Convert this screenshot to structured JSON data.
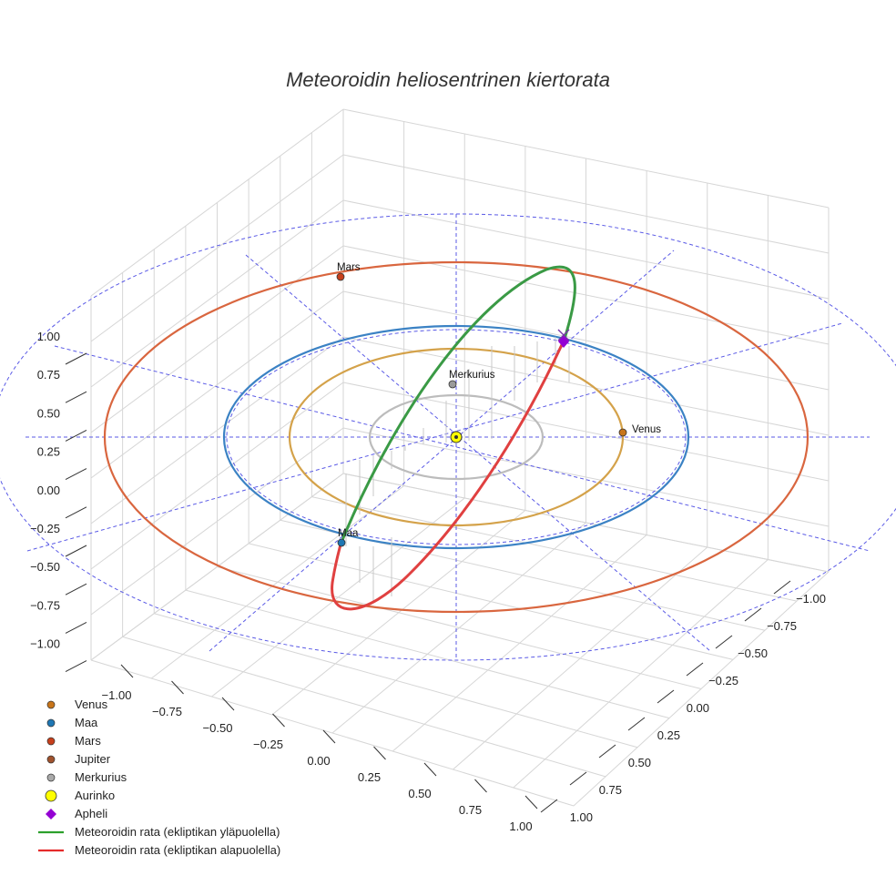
{
  "chart_data": {
    "type": "scatter",
    "title": "Meteoroidin heliosentrinen kiertorata",
    "axes": {
      "x_ticks": [
        "−1.00",
        "−0.75",
        "−0.50",
        "−0.25",
        "0.00",
        "0.25",
        "0.50",
        "0.75",
        "1.00"
      ],
      "y_ticks": [
        "−1.00",
        "−0.75",
        "−0.50",
        "−0.25",
        "0.00",
        "0.25",
        "0.50",
        "0.75",
        "1.00"
      ],
      "z_ticks": [
        "1.00",
        "0.75",
        "0.50",
        "0.25",
        "0.00",
        "−0.25",
        "−0.50",
        "−0.75",
        "−1.00"
      ],
      "xlim": [
        -1,
        1
      ],
      "ylim": [
        -1,
        1
      ],
      "zlim": [
        -1,
        1
      ],
      "grid": true
    },
    "planets": [
      {
        "name": "Venus",
        "label": "Venus",
        "color": "#c8751a",
        "orbit_color": "#d4a24a",
        "orbit_radius": 0.72
      },
      {
        "name": "Maa",
        "label": "Maa",
        "color": "#1f77b4",
        "orbit_color": "#3b82c4",
        "orbit_radius": 1.0
      },
      {
        "name": "Mars",
        "label": "Mars",
        "color": "#c7401c",
        "orbit_color": "#d9663f",
        "orbit_radius": 1.52
      },
      {
        "name": "Merkurius",
        "label": "Merkurius",
        "color": "#9a9a9a",
        "orbit_color": "#bcbcbc",
        "orbit_radius": 0.39
      }
    ],
    "sun": {
      "name": "Aurinko",
      "color": "#ffff00"
    },
    "aphelion": {
      "name": "Apheli",
      "color": "#9400d3"
    },
    "meteoroid": {
      "above_label": "Meteoroidin rata (ekliptikan yläpuolella)",
      "below_label": "Meteoroidin rata (ekliptikan alapuolella)",
      "above_color": "#3a9a45",
      "below_color": "#e04040"
    },
    "legend": {
      "placement": "bottom-left",
      "entries": [
        {
          "label": "Venus",
          "symbol": "dot",
          "color": "#c8751a"
        },
        {
          "label": "Maa",
          "symbol": "dot",
          "color": "#1f77b4"
        },
        {
          "label": "Mars",
          "symbol": "dot",
          "color": "#c7401c"
        },
        {
          "label": "Jupiter",
          "symbol": "dot",
          "color": "#a0522d"
        },
        {
          "label": "Merkurius",
          "symbol": "dot",
          "color": "#a9a9a9"
        },
        {
          "label": "Aurinko",
          "symbol": "sun",
          "color": "#ffff00"
        },
        {
          "label": "Apheli",
          "symbol": "diamond",
          "color": "#9400d3"
        },
        {
          "label": "Meteoroidin rata (ekliptikan yläpuolella)",
          "symbol": "line",
          "color": "#2ca02c"
        },
        {
          "label": "Meteoroidin rata (ekliptikan alapuolella)",
          "symbol": "line",
          "color": "#e52b2b"
        }
      ]
    }
  }
}
